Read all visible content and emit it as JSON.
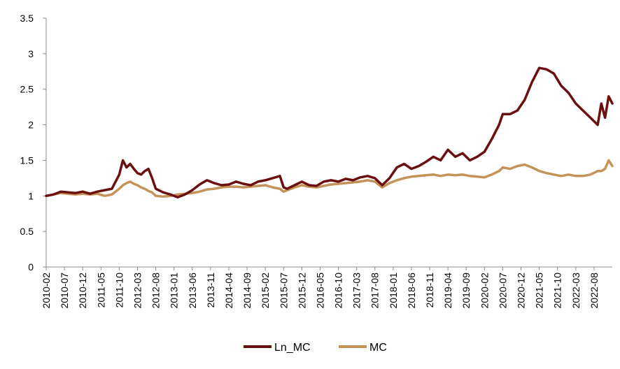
{
  "chart_data": {
    "type": "line",
    "title": "",
    "xlabel": "",
    "ylabel": "",
    "ylim": [
      0,
      3.5
    ],
    "y_ticks": [
      "0",
      "0.5",
      "1",
      "1.5",
      "2",
      "2.5",
      "3",
      "3.5"
    ],
    "x_ticks": [
      "2010-02",
      "2010-07",
      "2010-12",
      "2011-05",
      "2011-10",
      "2012-03",
      "2012-08",
      "2013-01",
      "2013-06",
      "2013-11",
      "2014-04",
      "2014-09",
      "2015-02",
      "2015-07",
      "2015-12",
      "2016-05",
      "2016-10",
      "2017-03",
      "2017-08",
      "2018-01",
      "2018-06",
      "2018-11",
      "2019-04",
      "2019-09",
      "2020-02",
      "2020-07",
      "2020-12",
      "2021-05",
      "2021-10",
      "2022-03",
      "2022-08"
    ],
    "grid": false,
    "legend_position": "bottom",
    "x": [
      "2010-02",
      "2010-04",
      "2010-06",
      "2010-08",
      "2010-10",
      "2010-12",
      "2011-02",
      "2011-04",
      "2011-06",
      "2011-08",
      "2011-10",
      "2011-11",
      "2011-12",
      "2012-01",
      "2012-02",
      "2012-03",
      "2012-04",
      "2012-05",
      "2012-06",
      "2012-07",
      "2012-08",
      "2012-10",
      "2012-12",
      "2013-02",
      "2013-04",
      "2013-06",
      "2013-08",
      "2013-10",
      "2013-12",
      "2014-02",
      "2014-04",
      "2014-06",
      "2014-08",
      "2014-10",
      "2014-12",
      "2015-02",
      "2015-04",
      "2015-06",
      "2015-07",
      "2015-08",
      "2015-10",
      "2015-12",
      "2016-02",
      "2016-04",
      "2016-06",
      "2016-08",
      "2016-10",
      "2016-12",
      "2017-02",
      "2017-04",
      "2017-06",
      "2017-08",
      "2017-10",
      "2017-12",
      "2018-02",
      "2018-04",
      "2018-06",
      "2018-08",
      "2018-10",
      "2018-12",
      "2019-02",
      "2019-04",
      "2019-06",
      "2019-08",
      "2019-10",
      "2019-12",
      "2020-02",
      "2020-04",
      "2020-06",
      "2020-07",
      "2020-09",
      "2020-11",
      "2021-01",
      "2021-03",
      "2021-05",
      "2021-07",
      "2021-09",
      "2021-11",
      "2022-01",
      "2022-03",
      "2022-05",
      "2022-07",
      "2022-09",
      "2022-10",
      "2022-11",
      "2022-12",
      "2023-01"
    ],
    "series": [
      {
        "name": "Ln_MC",
        "color": "#6B0F0F",
        "values": [
          1.0,
          1.02,
          1.06,
          1.05,
          1.04,
          1.06,
          1.03,
          1.06,
          1.08,
          1.1,
          1.3,
          1.5,
          1.4,
          1.45,
          1.38,
          1.32,
          1.3,
          1.35,
          1.38,
          1.25,
          1.1,
          1.05,
          1.02,
          0.98,
          1.02,
          1.08,
          1.16,
          1.22,
          1.18,
          1.15,
          1.16,
          1.2,
          1.17,
          1.15,
          1.2,
          1.22,
          1.25,
          1.28,
          1.12,
          1.1,
          1.15,
          1.2,
          1.15,
          1.14,
          1.2,
          1.22,
          1.2,
          1.24,
          1.22,
          1.26,
          1.28,
          1.25,
          1.15,
          1.25,
          1.4,
          1.45,
          1.38,
          1.42,
          1.48,
          1.55,
          1.5,
          1.65,
          1.55,
          1.6,
          1.5,
          1.55,
          1.62,
          1.8,
          2.0,
          2.15,
          2.15,
          2.2,
          2.35,
          2.6,
          2.8,
          2.78,
          2.72,
          2.55,
          2.45,
          2.3,
          2.2,
          2.1,
          2.0,
          2.3,
          2.1,
          2.4,
          2.3
        ]
      },
      {
        "name": "MC",
        "color": "#C4935A",
        "values": [
          1.0,
          1.02,
          1.04,
          1.03,
          1.02,
          1.03,
          1.02,
          1.03,
          1.0,
          1.02,
          1.1,
          1.15,
          1.18,
          1.2,
          1.17,
          1.15,
          1.12,
          1.1,
          1.07,
          1.05,
          1.0,
          0.99,
          1.0,
          1.02,
          1.03,
          1.04,
          1.06,
          1.09,
          1.1,
          1.12,
          1.13,
          1.13,
          1.12,
          1.13,
          1.14,
          1.15,
          1.12,
          1.1,
          1.06,
          1.08,
          1.12,
          1.15,
          1.13,
          1.12,
          1.14,
          1.16,
          1.17,
          1.18,
          1.19,
          1.2,
          1.22,
          1.2,
          1.12,
          1.18,
          1.22,
          1.25,
          1.27,
          1.28,
          1.29,
          1.3,
          1.28,
          1.3,
          1.29,
          1.3,
          1.28,
          1.27,
          1.26,
          1.3,
          1.35,
          1.4,
          1.38,
          1.42,
          1.44,
          1.4,
          1.35,
          1.32,
          1.3,
          1.28,
          1.3,
          1.28,
          1.28,
          1.3,
          1.35,
          1.35,
          1.38,
          1.5,
          1.42
        ]
      }
    ]
  }
}
